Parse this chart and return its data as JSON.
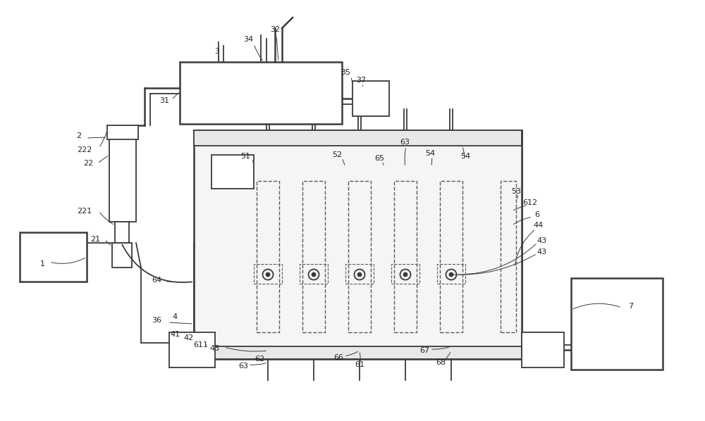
{
  "bg_color": "#ffffff",
  "line_color": "#3a3a3a",
  "dashed_color": "#5a5a5a",
  "label_color": "#222222",
  "fig_width": 10.0,
  "fig_height": 5.98,
  "dpi": 100
}
